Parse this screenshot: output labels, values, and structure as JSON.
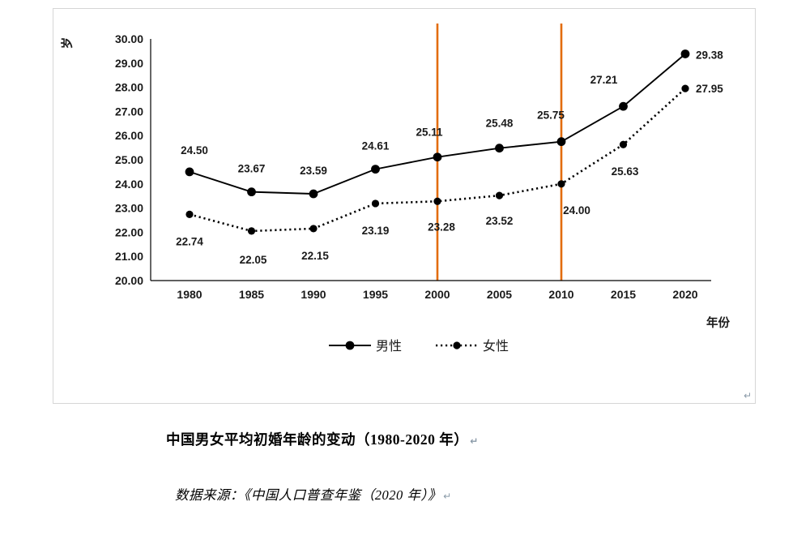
{
  "chart_data": {
    "type": "line",
    "categories": [
      "1980",
      "1985",
      "1990",
      "1995",
      "2000",
      "2005",
      "2010",
      "2015",
      "2020"
    ],
    "series": [
      {
        "name": "男性",
        "style": "solid",
        "values": [
          24.5,
          23.67,
          23.59,
          24.61,
          25.11,
          25.48,
          25.75,
          27.21,
          29.38
        ]
      },
      {
        "name": "女性",
        "style": "dotted",
        "values": [
          22.74,
          22.05,
          22.15,
          23.19,
          23.28,
          23.52,
          24.0,
          25.63,
          27.95
        ]
      }
    ],
    "ylabel": "岁",
    "xlabel": "年份",
    "ylim": [
      20,
      30
    ],
    "ytick_step": 1,
    "ytick_decimals": 2,
    "grid": false,
    "legend_position": "bottom",
    "series_color": "#000000",
    "highlight_vlines": {
      "categories": [
        "2000",
        "2010"
      ],
      "color": "#E36C0A"
    }
  },
  "caption": {
    "title": "中国男女平均初婚年龄的变动（1980-2020 年）"
  },
  "source": {
    "text": "数据来源：《中国人口普查年鉴（2020 年）》"
  },
  "marks": {
    "return_mark": "↵"
  }
}
